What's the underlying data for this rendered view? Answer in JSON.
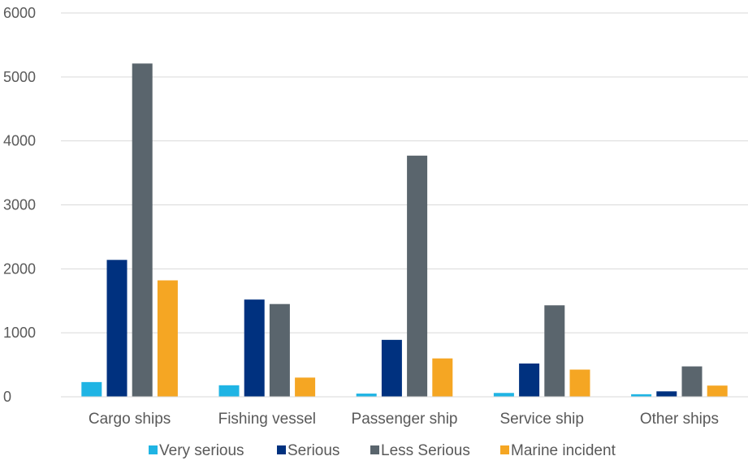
{
  "chart_data": {
    "type": "bar",
    "categories": [
      "Cargo ships",
      "Fishing vessel",
      "Passenger ship",
      "Service ship",
      "Other ships"
    ],
    "series": [
      {
        "name": "Very serious",
        "color": "#1fb4e4",
        "values": [
          230,
          180,
          50,
          60,
          40
        ]
      },
      {
        "name": "Serious",
        "color": "#00317f",
        "values": [
          2140,
          1520,
          890,
          520,
          85
        ]
      },
      {
        "name": "Less Serious",
        "color": "#5a656d",
        "values": [
          5210,
          1450,
          3770,
          1430,
          475
        ]
      },
      {
        "name": "Marine incident",
        "color": "#f5a623",
        "values": [
          1820,
          300,
          600,
          425,
          175
        ]
      }
    ],
    "ylim": [
      0,
      6000
    ],
    "yticks": [
      0,
      1000,
      2000,
      3000,
      4000,
      5000,
      6000
    ],
    "grid": true,
    "legend": "bottom"
  }
}
